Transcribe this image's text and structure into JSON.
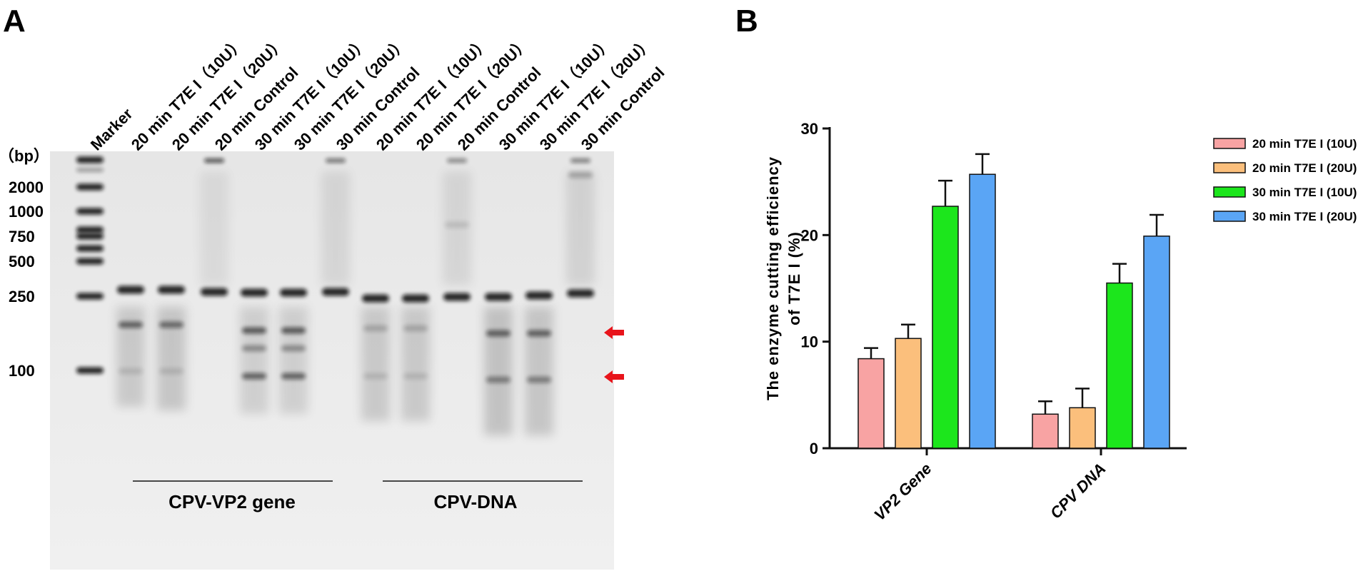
{
  "panel_a": {
    "letter": "A",
    "bp_unit": "（bp）",
    "lanes": [
      "Marker",
      "20 min T7E I（10U）",
      "20 min T7E I（20U）",
      "20 min Control",
      "30 min T7E I（10U）",
      "30 min T7E I（20U）",
      "30 min Control",
      "20 min T7E I（10U）",
      "20 min T7E I（20U）",
      "20 min Control",
      "30 min T7E I（10U）",
      "30 min T7E I（20U）",
      "30 min Control"
    ],
    "marker_sizes": [
      "2000",
      "1000",
      "750",
      "500",
      "250",
      "100"
    ],
    "groups": [
      "CPV-VP2 gene",
      "CPV-DNA"
    ],
    "arrow_color": "#e8141b"
  },
  "panel_b": {
    "letter": "B",
    "chart_data": {
      "type": "bar",
      "categories": [
        "VP2 Gene",
        "CPV DNA"
      ],
      "ylabel_line1": "The enzyme cutting efficiency",
      "ylabel_line2": "of T7E I (%)",
      "ylim": [
        0,
        30
      ],
      "yticks": [
        "0",
        "10",
        "20",
        "30"
      ],
      "legend_position": "top-right",
      "series": [
        {
          "name": "20 min T7E I (10U)",
          "color": "#f8a3a3",
          "values": [
            8.4,
            3.2
          ],
          "errors": [
            1.0,
            1.2
          ]
        },
        {
          "name": "20 min T7E I (20U)",
          "color": "#fbbf7c",
          "values": [
            10.3,
            3.8
          ],
          "errors": [
            1.3,
            1.8
          ]
        },
        {
          "name": "30 min T7E I (10U)",
          "color": "#1ce61c",
          "values": [
            22.7,
            15.5
          ],
          "errors": [
            2.4,
            1.8
          ]
        },
        {
          "name": "30 min T7E I (20U)",
          "color": "#5aa5f5",
          "values": [
            25.7,
            19.9
          ],
          "errors": [
            1.9,
            2.0
          ]
        }
      ]
    }
  }
}
